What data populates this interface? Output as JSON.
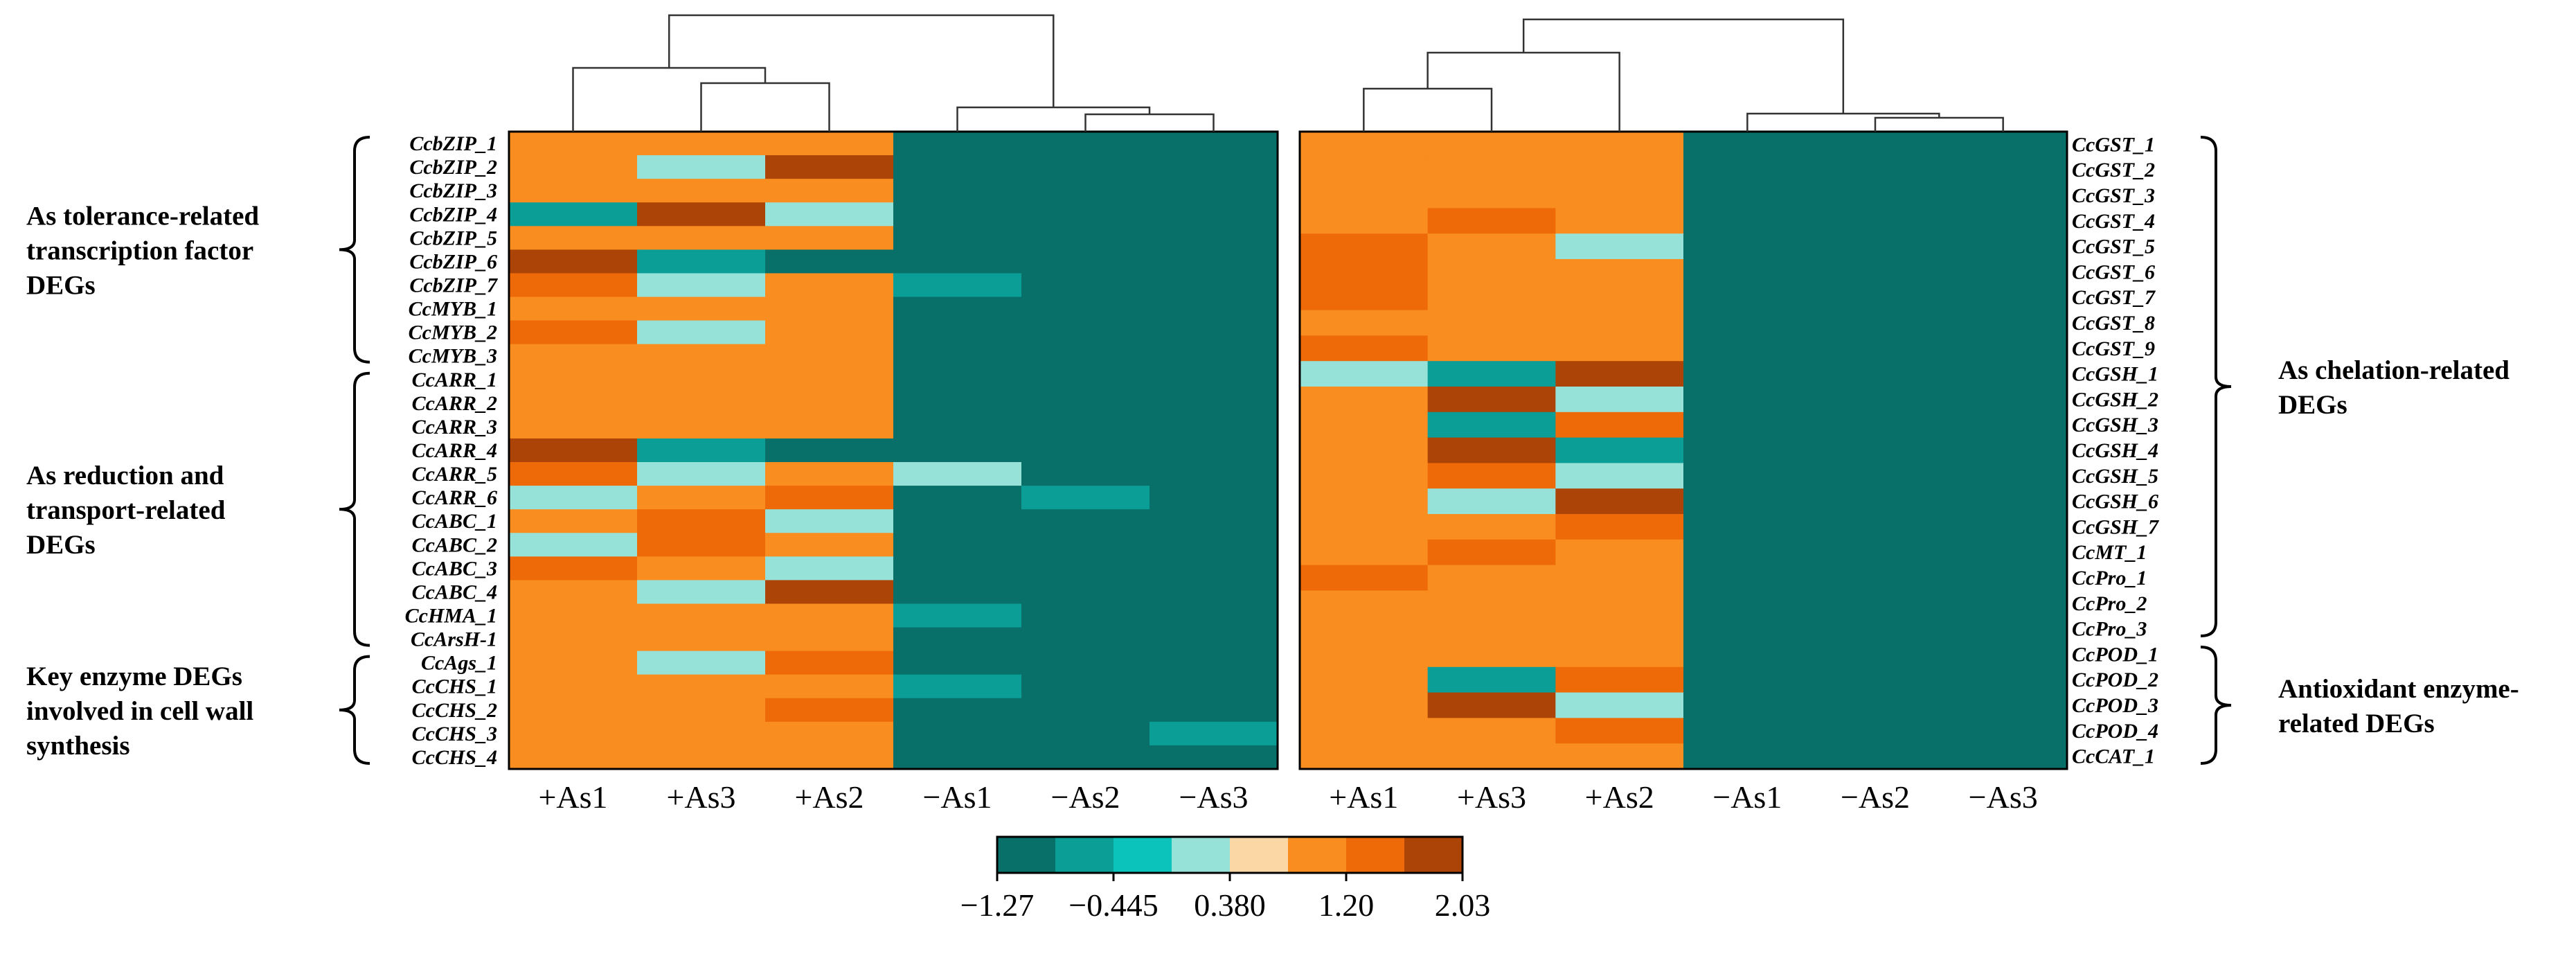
{
  "chart_data": {
    "type": "heatmap",
    "color_scale": {
      "min": -1.27,
      "max": 2.03,
      "bins": 8,
      "tick_labels": [
        "−1.27",
        "−0.445",
        "0.380",
        "1.20",
        "2.03"
      ],
      "colors": [
        "#087068",
        "#0a9e96",
        "#0cc3bb",
        "#96e2d8",
        "#fcd7a6",
        "#f98d1f",
        "#ee6a09",
        "#ac4407"
      ]
    },
    "panels": [
      {
        "name": "left",
        "columns": [
          "+As1",
          "+As3",
          "+As2",
          "−As1",
          "−As2",
          "−As3"
        ],
        "rows": [
          "CcbZIP_1",
          "CcbZIP_2",
          "CcbZIP_3",
          "CcbZIP_4",
          "CcbZIP_5",
          "CcbZIP_6",
          "CcbZIP_7",
          "CcMYB_1",
          "CcMYB_2",
          "CcMYB_3",
          "CcARR_1",
          "CcARR_2",
          "CcARR_3",
          "CcARR_4",
          "CcARR_5",
          "CcARR_6",
          "CcABC_1",
          "CcABC_2",
          "CcABC_3",
          "CcABC_4",
          "CcHMA_1",
          "CcArsH-1",
          "CcAgs_1",
          "CcCHS_1",
          "CcCHS_2",
          "CcCHS_3",
          "CcCHS_4"
        ],
        "values": [
          [
            1.1,
            0.9,
            1.1,
            -1.2,
            -1.2,
            -1.2
          ],
          [
            0.9,
            0.3,
            2.0,
            -1.0,
            -1.2,
            -1.0
          ],
          [
            1.1,
            0.9,
            1.1,
            -1.2,
            -1.2,
            -1.2
          ],
          [
            -0.6,
            2.0,
            0.3,
            -1.2,
            -1.0,
            -1.0
          ],
          [
            1.1,
            0.9,
            1.1,
            -1.2,
            -1.2,
            -1.2
          ],
          [
            2.0,
            -0.6,
            -1.0,
            -1.0,
            -1.0,
            -1.0
          ],
          [
            1.6,
            0.3,
            1.1,
            -0.6,
            -1.2,
            -1.0
          ],
          [
            1.1,
            0.9,
            1.1,
            -1.2,
            -1.0,
            -1.0
          ],
          [
            1.6,
            0.3,
            1.1,
            -1.0,
            -1.2,
            -1.2
          ],
          [
            1.1,
            0.9,
            1.1,
            -1.0,
            -1.2,
            -1.2
          ],
          [
            1.1,
            0.9,
            1.1,
            -1.2,
            -1.2,
            -1.2
          ],
          [
            1.1,
            0.9,
            1.1,
            -1.0,
            -1.2,
            -1.2
          ],
          [
            1.1,
            0.9,
            1.1,
            -1.2,
            -1.2,
            -1.2
          ],
          [
            2.0,
            -0.6,
            -1.0,
            -1.0,
            -1.0,
            -1.0
          ],
          [
            1.6,
            0.3,
            1.1,
            0.3,
            -1.2,
            -1.2
          ],
          [
            0.3,
            1.1,
            1.6,
            -1.2,
            -0.6,
            -1.2
          ],
          [
            0.9,
            1.6,
            0.3,
            -1.0,
            -1.0,
            -1.0
          ],
          [
            0.3,
            1.6,
            1.1,
            -1.2,
            -1.2,
            -1.2
          ],
          [
            1.6,
            1.1,
            0.3,
            -1.2,
            -1.2,
            -1.2
          ],
          [
            0.9,
            0.3,
            2.0,
            -1.0,
            -1.2,
            -1.0
          ],
          [
            0.9,
            1.1,
            1.1,
            -0.6,
            -1.2,
            -1.2
          ],
          [
            1.1,
            0.9,
            1.1,
            -1.2,
            -1.2,
            -1.2
          ],
          [
            1.1,
            0.3,
            1.6,
            -1.2,
            -1.2,
            -1.0
          ],
          [
            1.1,
            1.1,
            0.9,
            -0.6,
            -1.2,
            -1.2
          ],
          [
            0.9,
            0.9,
            1.6,
            -1.2,
            -1.0,
            -1.2
          ],
          [
            0.9,
            1.1,
            1.1,
            -1.2,
            -1.2,
            -0.6
          ],
          [
            0.9,
            1.1,
            1.1,
            -1.2,
            -1.2,
            -1.2
          ]
        ],
        "groups": [
          {
            "label": [
              "As tolerance-related",
              "transcription factor",
              "DEGs"
            ],
            "first_row": 0,
            "last_row": 9
          },
          {
            "label": [
              "As reduction and",
              "transport-related",
              "DEGs"
            ],
            "first_row": 10,
            "last_row": 21
          },
          {
            "label": [
              "Key enzyme DEGs",
              "involved in cell wall",
              "synthesis"
            ],
            "first_row": 22,
            "last_row": 26
          }
        ]
      },
      {
        "name": "right",
        "columns": [
          "+As1",
          "+As3",
          "+As2",
          "−As1",
          "−As2",
          "−As3"
        ],
        "rows": [
          "CcGST_1",
          "CcGST_2",
          "CcGST_3",
          "CcGST_4",
          "CcGST_5",
          "CcGST_6",
          "CcGST_7",
          "CcGST_8",
          "CcGST_9",
          "CcGSH_1",
          "CcGSH_2",
          "CcGSH_3",
          "CcGSH_4",
          "CcGSH_5",
          "CcGSH_6",
          "CcGSH_7",
          "CcMT_1",
          "CcPro_1",
          "CcPro_2",
          "CcPro_3",
          "CcPOD_1",
          "CcPOD_2",
          "CcPOD_3",
          "CcPOD_4",
          "CcCAT_1"
        ],
        "values": [
          [
            1.1,
            1.1,
            1.1,
            -1.2,
            -1.0,
            -1.0
          ],
          [
            1.1,
            1.1,
            0.9,
            -1.2,
            -1.0,
            -1.0
          ],
          [
            1.1,
            1.1,
            1.1,
            -1.2,
            -1.2,
            -1.2
          ],
          [
            0.9,
            1.6,
            1.1,
            -1.2,
            -1.2,
            -1.2
          ],
          [
            1.6,
            1.1,
            0.3,
            -1.2,
            -1.2,
            -1.0
          ],
          [
            1.6,
            1.1,
            0.9,
            -1.0,
            -1.2,
            -1.2
          ],
          [
            1.6,
            0.9,
            1.1,
            -1.2,
            -1.0,
            -1.2
          ],
          [
            1.1,
            1.1,
            0.9,
            -1.2,
            -1.2,
            -1.2
          ],
          [
            1.6,
            1.1,
            0.9,
            -1.2,
            -1.2,
            -1.2
          ],
          [
            0.3,
            -0.6,
            2.0,
            -1.0,
            -1.0,
            -1.0
          ],
          [
            0.9,
            2.0,
            0.3,
            -1.2,
            -1.0,
            -1.0
          ],
          [
            1.1,
            -0.6,
            1.6,
            -1.0,
            -1.0,
            -1.2
          ],
          [
            1.1,
            2.0,
            -0.6,
            -1.0,
            -1.0,
            -1.0
          ],
          [
            1.1,
            1.6,
            0.3,
            -1.2,
            -1.2,
            -1.0
          ],
          [
            1.1,
            0.3,
            2.0,
            -1.0,
            -1.0,
            -1.0
          ],
          [
            0.9,
            1.1,
            1.6,
            -1.2,
            -1.0,
            -1.2
          ],
          [
            0.9,
            1.6,
            0.9,
            -1.2,
            -1.2,
            -1.2
          ],
          [
            1.6,
            1.1,
            0.9,
            -1.0,
            -1.0,
            -1.2
          ],
          [
            1.1,
            1.1,
            1.1,
            -1.2,
            -1.0,
            -1.2
          ],
          [
            1.1,
            1.1,
            1.1,
            -1.0,
            -1.2,
            -1.2
          ],
          [
            0.9,
            1.1,
            1.1,
            -1.2,
            -1.2,
            -1.0
          ],
          [
            1.1,
            -0.6,
            1.6,
            -1.0,
            -1.2,
            -1.0
          ],
          [
            0.9,
            2.0,
            0.3,
            -1.0,
            -1.0,
            -1.0
          ],
          [
            0.9,
            0.9,
            1.6,
            -1.0,
            -1.0,
            -1.2
          ],
          [
            1.1,
            1.1,
            1.1,
            -1.2,
            -1.2,
            -1.0
          ]
        ],
        "groups": [
          {
            "label": [
              "As chelation-related",
              "DEGs"
            ],
            "first_row": 0,
            "last_row": 19
          },
          {
            "label": [
              "Antioxidant enzyme-",
              "related DEGs"
            ],
            "first_row": 20,
            "last_row": 24
          }
        ]
      }
    ]
  }
}
